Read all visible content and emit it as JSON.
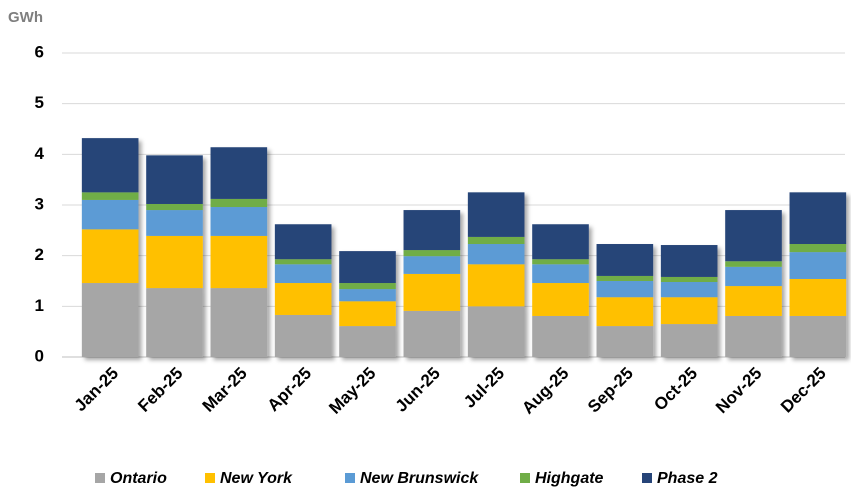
{
  "chart_data": {
    "type": "stacked_bar",
    "y_label": "GWh",
    "categories": [
      "Jan-25",
      "Feb-25",
      "Mar-25",
      "Apr-25",
      "May-25",
      "Jun-25",
      "Jul-25",
      "Aug-25",
      "Sep-25",
      "Oct-25",
      "Nov-25",
      "Dec-25"
    ],
    "series": [
      {
        "name": "Ontario",
        "color": "#a6a6a6",
        "values": [
          1.46,
          1.36,
          1.36,
          0.83,
          0.61,
          0.91,
          1.0,
          0.81,
          0.61,
          0.65,
          0.81,
          0.81
        ]
      },
      {
        "name": "New York",
        "color": "#ffc000",
        "values": [
          1.06,
          1.03,
          1.03,
          0.63,
          0.49,
          0.73,
          0.83,
          0.65,
          0.57,
          0.53,
          0.59,
          0.73
        ]
      },
      {
        "name": "New Brunswick",
        "color": "#5b9bd5",
        "values": [
          0.58,
          0.51,
          0.57,
          0.37,
          0.24,
          0.35,
          0.4,
          0.37,
          0.32,
          0.3,
          0.38,
          0.53
        ]
      },
      {
        "name": "Highgate",
        "color": "#70ad47",
        "values": [
          0.15,
          0.12,
          0.16,
          0.1,
          0.12,
          0.12,
          0.14,
          0.1,
          0.1,
          0.1,
          0.11,
          0.16
        ]
      },
      {
        "name": "Phase 2",
        "color": "#264478",
        "values": [
          1.07,
          0.96,
          1.02,
          0.69,
          0.63,
          0.79,
          0.88,
          0.69,
          0.63,
          0.63,
          1.01,
          1.02
        ]
      }
    ],
    "ylim": [
      0,
      6
    ],
    "yticks": [
      0,
      1,
      2,
      3,
      4,
      5,
      6
    ],
    "grid": true,
    "legend": "bottom"
  }
}
